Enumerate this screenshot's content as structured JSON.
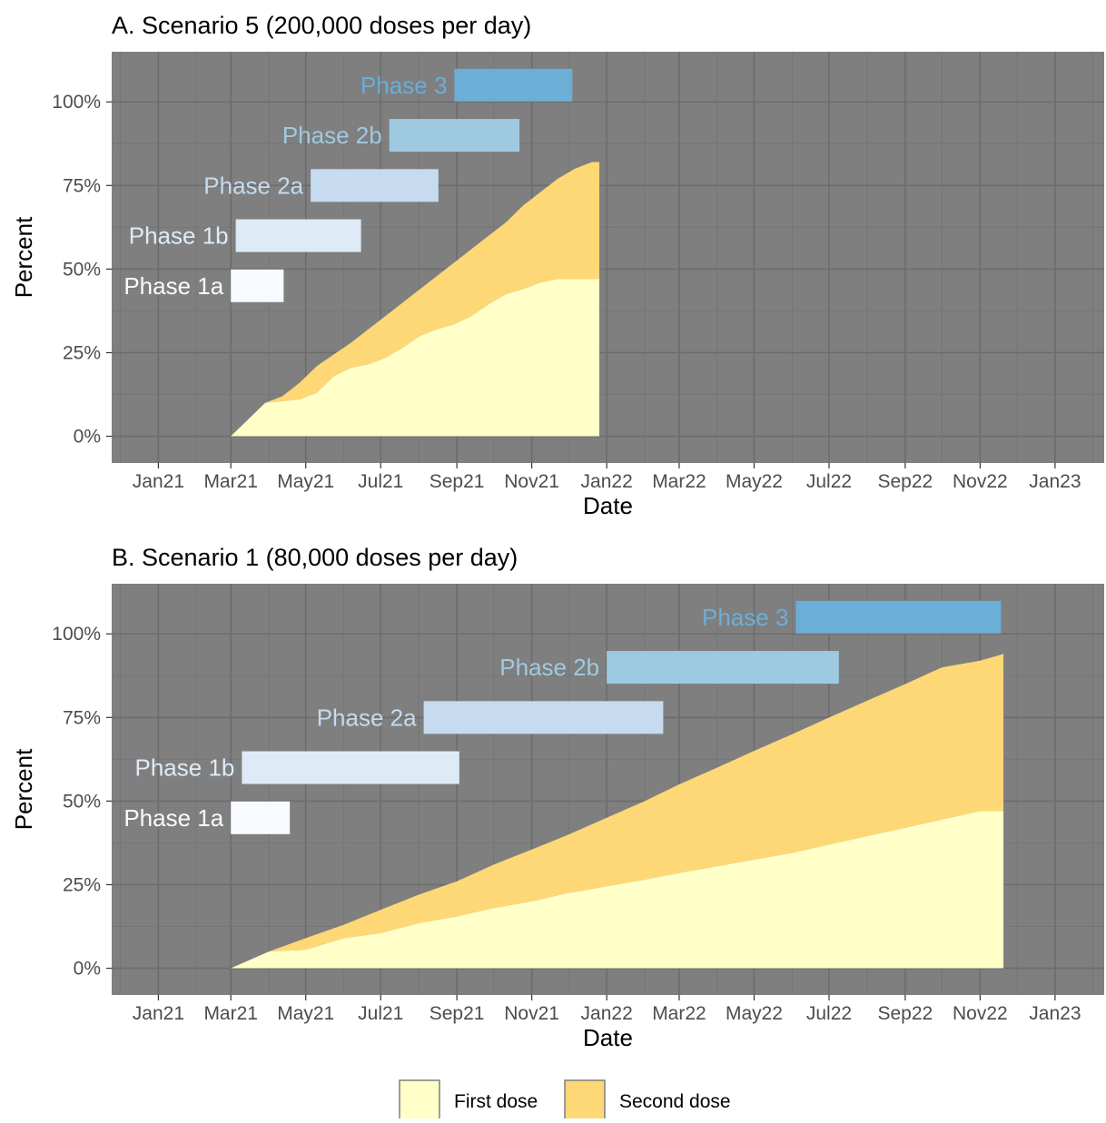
{
  "colors": {
    "panel_bg": "#7f7f7f",
    "grid_major": "#6c6c6c",
    "grid_minor": "#767676",
    "first_dose": "#ffffc7",
    "second_dose": "#fed876",
    "phase_1a": "#f7fbff",
    "phase_1b": "#deebf7",
    "phase_2a": "#c6dbef",
    "phase_2b": "#9ecae1",
    "phase_3": "#6baed6"
  },
  "legend": {
    "first_dose_label": "First dose",
    "second_dose_label": "Second dose"
  },
  "chart_data": [
    {
      "type": "area",
      "title": "A. Scenario 5 (200,000 doses per day)",
      "xlabel": "Date",
      "ylabel": "Percent",
      "xlim": [
        "2020-11-24",
        "2023-02-10"
      ],
      "ylim": [
        -0.08,
        1.15
      ],
      "x_ticks": [
        {
          "date": "2021-01-01",
          "label": "Jan21"
        },
        {
          "date": "2021-03-01",
          "label": "Mar21"
        },
        {
          "date": "2021-05-01",
          "label": "May21"
        },
        {
          "date": "2021-07-01",
          "label": "Jul21"
        },
        {
          "date": "2021-09-01",
          "label": "Sep21"
        },
        {
          "date": "2021-11-01",
          "label": "Nov21"
        },
        {
          "date": "2022-01-01",
          "label": "Jan22"
        },
        {
          "date": "2022-03-01",
          "label": "Mar22"
        },
        {
          "date": "2022-05-01",
          "label": "May22"
        },
        {
          "date": "2022-07-01",
          "label": "Jul22"
        },
        {
          "date": "2022-09-01",
          "label": "Sep22"
        },
        {
          "date": "2022-11-01",
          "label": "Nov22"
        },
        {
          "date": "2023-01-01",
          "label": "Jan23"
        }
      ],
      "y_ticks": [
        {
          "value": 0,
          "label": "0%"
        },
        {
          "value": 0.25,
          "label": "25%"
        },
        {
          "value": 0.5,
          "label": "50%"
        },
        {
          "value": 0.75,
          "label": "75%"
        },
        {
          "value": 1.0,
          "label": "100%"
        }
      ],
      "phases": [
        {
          "label": "Phase 1a",
          "start": "2021-03-01",
          "end": "2021-04-13",
          "y": 0.45,
          "color": "#f7fbff"
        },
        {
          "label": "Phase 1b",
          "start": "2021-03-05",
          "end": "2021-06-15",
          "y": 0.6,
          "color": "#deebf7"
        },
        {
          "label": "Phase 2a",
          "start": "2021-05-05",
          "end": "2021-08-17",
          "y": 0.75,
          "color": "#c6dbef"
        },
        {
          "label": "Phase 2b",
          "start": "2021-07-08",
          "end": "2021-10-22",
          "y": 0.9,
          "color": "#9ecae1"
        },
        {
          "label": "Phase 3",
          "start": "2021-08-30",
          "end": "2021-12-04",
          "y": 1.05,
          "color": "#6baed6"
        }
      ],
      "series": [
        {
          "name": "First dose",
          "x": [
            "2021-03-01",
            "2021-03-15",
            "2021-03-29",
            "2021-04-12",
            "2021-04-26",
            "2021-05-10",
            "2021-05-24",
            "2021-06-07",
            "2021-06-21",
            "2021-07-05",
            "2021-07-19",
            "2021-08-02",
            "2021-08-16",
            "2021-08-30",
            "2021-09-13",
            "2021-09-27",
            "2021-10-11",
            "2021-10-25",
            "2021-11-08",
            "2021-11-22",
            "2021-12-06",
            "2021-12-20",
            "2021-12-26"
          ],
          "y": [
            0,
            0.05,
            0.1,
            0.105,
            0.11,
            0.13,
            0.18,
            0.205,
            0.215,
            0.235,
            0.265,
            0.3,
            0.32,
            0.335,
            0.36,
            0.395,
            0.425,
            0.44,
            0.46,
            0.47,
            0.47,
            0.47,
            0.47
          ]
        },
        {
          "name": "Second dose",
          "x": [
            "2021-03-01",
            "2021-03-15",
            "2021-03-29",
            "2021-04-12",
            "2021-04-26",
            "2021-05-10",
            "2021-05-24",
            "2021-06-07",
            "2021-06-21",
            "2021-07-05",
            "2021-07-19",
            "2021-08-02",
            "2021-08-16",
            "2021-08-30",
            "2021-09-13",
            "2021-09-27",
            "2021-10-11",
            "2021-10-25",
            "2021-11-08",
            "2021-11-22",
            "2021-12-06",
            "2021-12-20",
            "2021-12-26"
          ],
          "y": [
            0,
            0,
            0,
            0.015,
            0.05,
            0.08,
            0.065,
            0.075,
            0.105,
            0.125,
            0.135,
            0.14,
            0.16,
            0.185,
            0.2,
            0.205,
            0.215,
            0.25,
            0.27,
            0.3,
            0.33,
            0.35,
            0.35
          ]
        }
      ]
    },
    {
      "type": "area",
      "title": "B. Scenario 1 (80,000 doses per day)",
      "xlabel": "Date",
      "ylabel": "Percent",
      "xlim": [
        "2020-11-24",
        "2023-02-10"
      ],
      "ylim": [
        -0.08,
        1.15
      ],
      "x_ticks": [
        {
          "date": "2021-01-01",
          "label": "Jan21"
        },
        {
          "date": "2021-03-01",
          "label": "Mar21"
        },
        {
          "date": "2021-05-01",
          "label": "May21"
        },
        {
          "date": "2021-07-01",
          "label": "Jul21"
        },
        {
          "date": "2021-09-01",
          "label": "Sep21"
        },
        {
          "date": "2021-11-01",
          "label": "Nov21"
        },
        {
          "date": "2022-01-01",
          "label": "Jan22"
        },
        {
          "date": "2022-03-01",
          "label": "Mar22"
        },
        {
          "date": "2022-05-01",
          "label": "May22"
        },
        {
          "date": "2022-07-01",
          "label": "Jul22"
        },
        {
          "date": "2022-09-01",
          "label": "Sep22"
        },
        {
          "date": "2022-11-01",
          "label": "Nov22"
        },
        {
          "date": "2023-01-01",
          "label": "Jan23"
        }
      ],
      "y_ticks": [
        {
          "value": 0,
          "label": "0%"
        },
        {
          "value": 0.25,
          "label": "25%"
        },
        {
          "value": 0.5,
          "label": "50%"
        },
        {
          "value": 0.75,
          "label": "75%"
        },
        {
          "value": 1.0,
          "label": "100%"
        }
      ],
      "phases": [
        {
          "label": "Phase 1a",
          "start": "2021-03-01",
          "end": "2021-04-18",
          "y": 0.45,
          "color": "#f7fbff"
        },
        {
          "label": "Phase 1b",
          "start": "2021-03-10",
          "end": "2021-09-03",
          "y": 0.6,
          "color": "#deebf7"
        },
        {
          "label": "Phase 2a",
          "start": "2021-08-05",
          "end": "2022-02-16",
          "y": 0.75,
          "color": "#c6dbef"
        },
        {
          "label": "Phase 2b",
          "start": "2022-01-01",
          "end": "2022-07-09",
          "y": 0.9,
          "color": "#9ecae1"
        },
        {
          "label": "Phase 3",
          "start": "2022-06-04",
          "end": "2022-11-18",
          "y": 1.05,
          "color": "#6baed6"
        }
      ],
      "series": [
        {
          "name": "First dose",
          "x": [
            "2021-03-01",
            "2021-04-01",
            "2021-05-01",
            "2021-06-01",
            "2021-07-01",
            "2021-08-01",
            "2021-09-01",
            "2021-10-01",
            "2021-11-01",
            "2021-12-01",
            "2022-01-01",
            "2022-02-01",
            "2022-03-01",
            "2022-04-01",
            "2022-05-01",
            "2022-06-01",
            "2022-07-01",
            "2022-08-01",
            "2022-09-01",
            "2022-10-01",
            "2022-11-01",
            "2022-11-20"
          ],
          "y": [
            0,
            0.05,
            0.055,
            0.09,
            0.105,
            0.135,
            0.155,
            0.18,
            0.2,
            0.225,
            0.245,
            0.265,
            0.285,
            0.305,
            0.325,
            0.345,
            0.37,
            0.395,
            0.42,
            0.445,
            0.47,
            0.47
          ]
        },
        {
          "name": "Second dose",
          "x": [
            "2021-03-01",
            "2021-04-01",
            "2021-05-01",
            "2021-06-01",
            "2021-07-01",
            "2021-08-01",
            "2021-09-01",
            "2021-10-01",
            "2021-11-01",
            "2021-12-01",
            "2022-01-01",
            "2022-02-01",
            "2022-03-01",
            "2022-04-01",
            "2022-05-01",
            "2022-06-01",
            "2022-07-01",
            "2022-08-01",
            "2022-09-01",
            "2022-10-01",
            "2022-11-01",
            "2022-11-20"
          ],
          "y": [
            0,
            0,
            0.035,
            0.04,
            0.07,
            0.085,
            0.105,
            0.13,
            0.155,
            0.175,
            0.205,
            0.235,
            0.265,
            0.295,
            0.325,
            0.355,
            0.38,
            0.405,
            0.43,
            0.455,
            0.45,
            0.47
          ]
        }
      ]
    }
  ]
}
